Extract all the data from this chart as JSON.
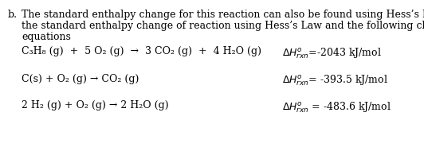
{
  "background_color": "#ffffff",
  "text_color": "#000000",
  "label_b": "b.",
  "intro_line1": "The standard enthalpy change for this reaction can also be found using Hess’s Law.  Find",
  "intro_line2": "the standard enthalpy change of reaction using Hess’s Law and the following chemical",
  "intro_line3": "equations",
  "eq1_left": "C₃H₈ (g)  +  5 O₂ (g)  →  3 CO₂ (g)  +  4 H₂O (g)",
  "eq1_dh": "$\\Delta H^{o}_{rxn}$=-2043 kJ/mol",
  "eq2_left": "C(s) + O₂ (g) → CO₂ (g)",
  "eq2_dh": "$\\Delta H^{o}_{rxn}$= -393.5 kJ/mol",
  "eq3_left": "2 H₂ (g) + O₂ (g) → 2 H₂O (g)",
  "eq3_dh": "$\\Delta H^{o}_{rxn}$ = -483.6 kJ/mol",
  "font_size": 9.0,
  "font_family": "DejaVu Serif"
}
